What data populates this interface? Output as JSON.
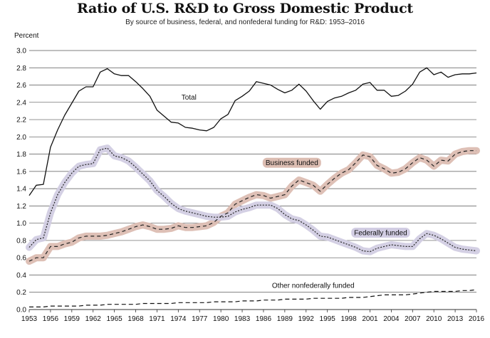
{
  "chart_data": {
    "type": "line",
    "title": "Ratio of U.S. R&D to Gross Domestic Product",
    "subtitle": "By source of business, federal, and nonfederal funding for R&D: 1953–2016",
    "ylabel": "Percent",
    "xlabel": "",
    "xlim": [
      1953,
      2016
    ],
    "ylim": [
      0,
      3.0
    ],
    "grid": "horizontal",
    "x_ticks": [
      "1953",
      "1956",
      "1959",
      "1962",
      "1965",
      "1968",
      "1971",
      "1974",
      "1977",
      "1980",
      "1983",
      "1986",
      "1989",
      "1992",
      "1995",
      "1998",
      "2001",
      "2004",
      "2007",
      "2010",
      "2013",
      "2016"
    ],
    "y_ticks": [
      "0.0",
      "0.2",
      "0.4",
      "0.6",
      "0.8",
      "1.0",
      "1.2",
      "1.4",
      "1.6",
      "1.8",
      "2.0",
      "2.2",
      "2.4",
      "2.6",
      "2.8",
      "3.0"
    ],
    "x": [
      1953,
      1954,
      1955,
      1956,
      1957,
      1958,
      1959,
      1960,
      1961,
      1962,
      1963,
      1964,
      1965,
      1966,
      1967,
      1968,
      1969,
      1970,
      1971,
      1972,
      1973,
      1974,
      1975,
      1976,
      1977,
      1978,
      1979,
      1980,
      1981,
      1982,
      1983,
      1984,
      1985,
      1986,
      1987,
      1988,
      1989,
      1990,
      1991,
      1992,
      1993,
      1994,
      1995,
      1996,
      1997,
      1998,
      1999,
      2000,
      2001,
      2002,
      2003,
      2004,
      2005,
      2006,
      2007,
      2008,
      2009,
      2010,
      2011,
      2012,
      2013,
      2014,
      2015,
      2016
    ],
    "series": [
      {
        "name": "Total",
        "style": "solid",
        "color": "#111111",
        "values": [
          1.32,
          1.44,
          1.45,
          1.88,
          2.08,
          2.25,
          2.39,
          2.53,
          2.58,
          2.58,
          2.75,
          2.79,
          2.73,
          2.71,
          2.71,
          2.64,
          2.56,
          2.47,
          2.31,
          2.24,
          2.17,
          2.16,
          2.11,
          2.1,
          2.08,
          2.07,
          2.11,
          2.21,
          2.26,
          2.42,
          2.47,
          2.53,
          2.64,
          2.62,
          2.6,
          2.55,
          2.51,
          2.54,
          2.61,
          2.53,
          2.42,
          2.32,
          2.41,
          2.45,
          2.47,
          2.51,
          2.54,
          2.61,
          2.63,
          2.54,
          2.54,
          2.47,
          2.48,
          2.53,
          2.61,
          2.75,
          2.8,
          2.72,
          2.75,
          2.69,
          2.72,
          2.73,
          2.73,
          2.74
        ]
      },
      {
        "name": "Business funded",
        "style": "dash",
        "color": "#222222",
        "highlight": "#dcbdb2",
        "values": [
          0.56,
          0.6,
          0.6,
          0.73,
          0.73,
          0.76,
          0.78,
          0.83,
          0.85,
          0.85,
          0.85,
          0.86,
          0.88,
          0.9,
          0.93,
          0.96,
          0.98,
          0.96,
          0.93,
          0.93,
          0.94,
          0.97,
          0.95,
          0.95,
          0.96,
          0.97,
          1.01,
          1.08,
          1.12,
          1.22,
          1.26,
          1.3,
          1.33,
          1.32,
          1.29,
          1.31,
          1.33,
          1.43,
          1.5,
          1.47,
          1.44,
          1.37,
          1.45,
          1.52,
          1.58,
          1.62,
          1.7,
          1.79,
          1.77,
          1.67,
          1.63,
          1.58,
          1.59,
          1.63,
          1.7,
          1.76,
          1.73,
          1.66,
          1.73,
          1.72,
          1.8,
          1.83,
          1.84,
          1.84
        ]
      },
      {
        "name": "Federally funded",
        "style": "dot",
        "color": "#222222",
        "highlight": "#d2cde3",
        "values": [
          0.72,
          0.81,
          0.83,
          1.12,
          1.33,
          1.47,
          1.58,
          1.66,
          1.68,
          1.69,
          1.85,
          1.87,
          1.78,
          1.76,
          1.72,
          1.65,
          1.57,
          1.49,
          1.38,
          1.31,
          1.23,
          1.17,
          1.14,
          1.12,
          1.1,
          1.08,
          1.07,
          1.07,
          1.08,
          1.13,
          1.16,
          1.18,
          1.21,
          1.21,
          1.21,
          1.17,
          1.1,
          1.05,
          1.03,
          0.98,
          0.92,
          0.85,
          0.84,
          0.81,
          0.78,
          0.75,
          0.72,
          0.68,
          0.67,
          0.71,
          0.73,
          0.75,
          0.74,
          0.73,
          0.73,
          0.82,
          0.88,
          0.86,
          0.82,
          0.77,
          0.72,
          0.7,
          0.69,
          0.68
        ]
      },
      {
        "name": "Other nonfederally funded",
        "style": "longdash",
        "color": "#111111",
        "values": [
          0.03,
          0.03,
          0.03,
          0.04,
          0.04,
          0.04,
          0.04,
          0.04,
          0.05,
          0.05,
          0.05,
          0.06,
          0.06,
          0.06,
          0.06,
          0.06,
          0.07,
          0.07,
          0.07,
          0.07,
          0.07,
          0.08,
          0.08,
          0.08,
          0.08,
          0.08,
          0.09,
          0.09,
          0.09,
          0.09,
          0.1,
          0.1,
          0.1,
          0.11,
          0.11,
          0.11,
          0.12,
          0.12,
          0.12,
          0.12,
          0.13,
          0.13,
          0.13,
          0.13,
          0.13,
          0.14,
          0.14,
          0.14,
          0.15,
          0.16,
          0.17,
          0.17,
          0.17,
          0.17,
          0.18,
          0.19,
          0.2,
          0.21,
          0.21,
          0.21,
          0.21,
          0.22,
          0.22,
          0.23
        ]
      }
    ],
    "annotations": [
      {
        "series": "Total",
        "text": "Total",
        "x": 1975.5,
        "y": 2.46
      },
      {
        "series": "Business funded",
        "text": "Business funded",
        "x": 1990,
        "y": 1.7,
        "boxed": true
      },
      {
        "series": "Federally funded",
        "text": "Federally funded",
        "x": 2002.5,
        "y": 0.89,
        "boxed": true
      },
      {
        "series": "Other nonfederally funded",
        "text": "Other nonfederally funded",
        "x": 1993,
        "y": 0.28
      }
    ]
  }
}
